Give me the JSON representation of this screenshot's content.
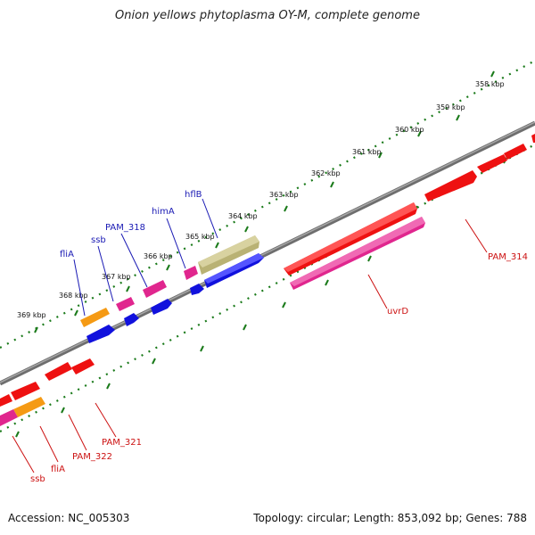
{
  "title": "Onion yellows phytoplasma OY-M, complete genome",
  "footer": {
    "accession": "Accession: NC_005303",
    "summary": "Topology: circular; Length: 853,092 bp; Genes: 788"
  },
  "colors": {
    "backbone": "#808080",
    "tick": "#1a7a1a",
    "label_blue": "#1a1ab4",
    "label_red": "#cc1111",
    "red": "#ee1111",
    "magenta": "#e0268e",
    "blue": "#1111dd",
    "orange": "#f59a14",
    "olive": "#b9b274"
  },
  "ruler": {
    "unit": "kbp",
    "labels": [
      "358 kbp",
      "359 kbp",
      "360 kbp",
      "361 kbp",
      "362 kbp",
      "363 kbp",
      "364 kbp",
      "365 kbp",
      "366 kbp",
      "367 kbp",
      "368 kbp",
      "369 kbp"
    ]
  },
  "feature_labels": {
    "forward": [
      "fliA",
      "ssb",
      "PAM_318",
      "himA",
      "hflB"
    ],
    "reverse": [
      "PAM_314",
      "uvrD",
      "PAM_321",
      "PAM_322",
      "fliA",
      "ssb"
    ]
  }
}
